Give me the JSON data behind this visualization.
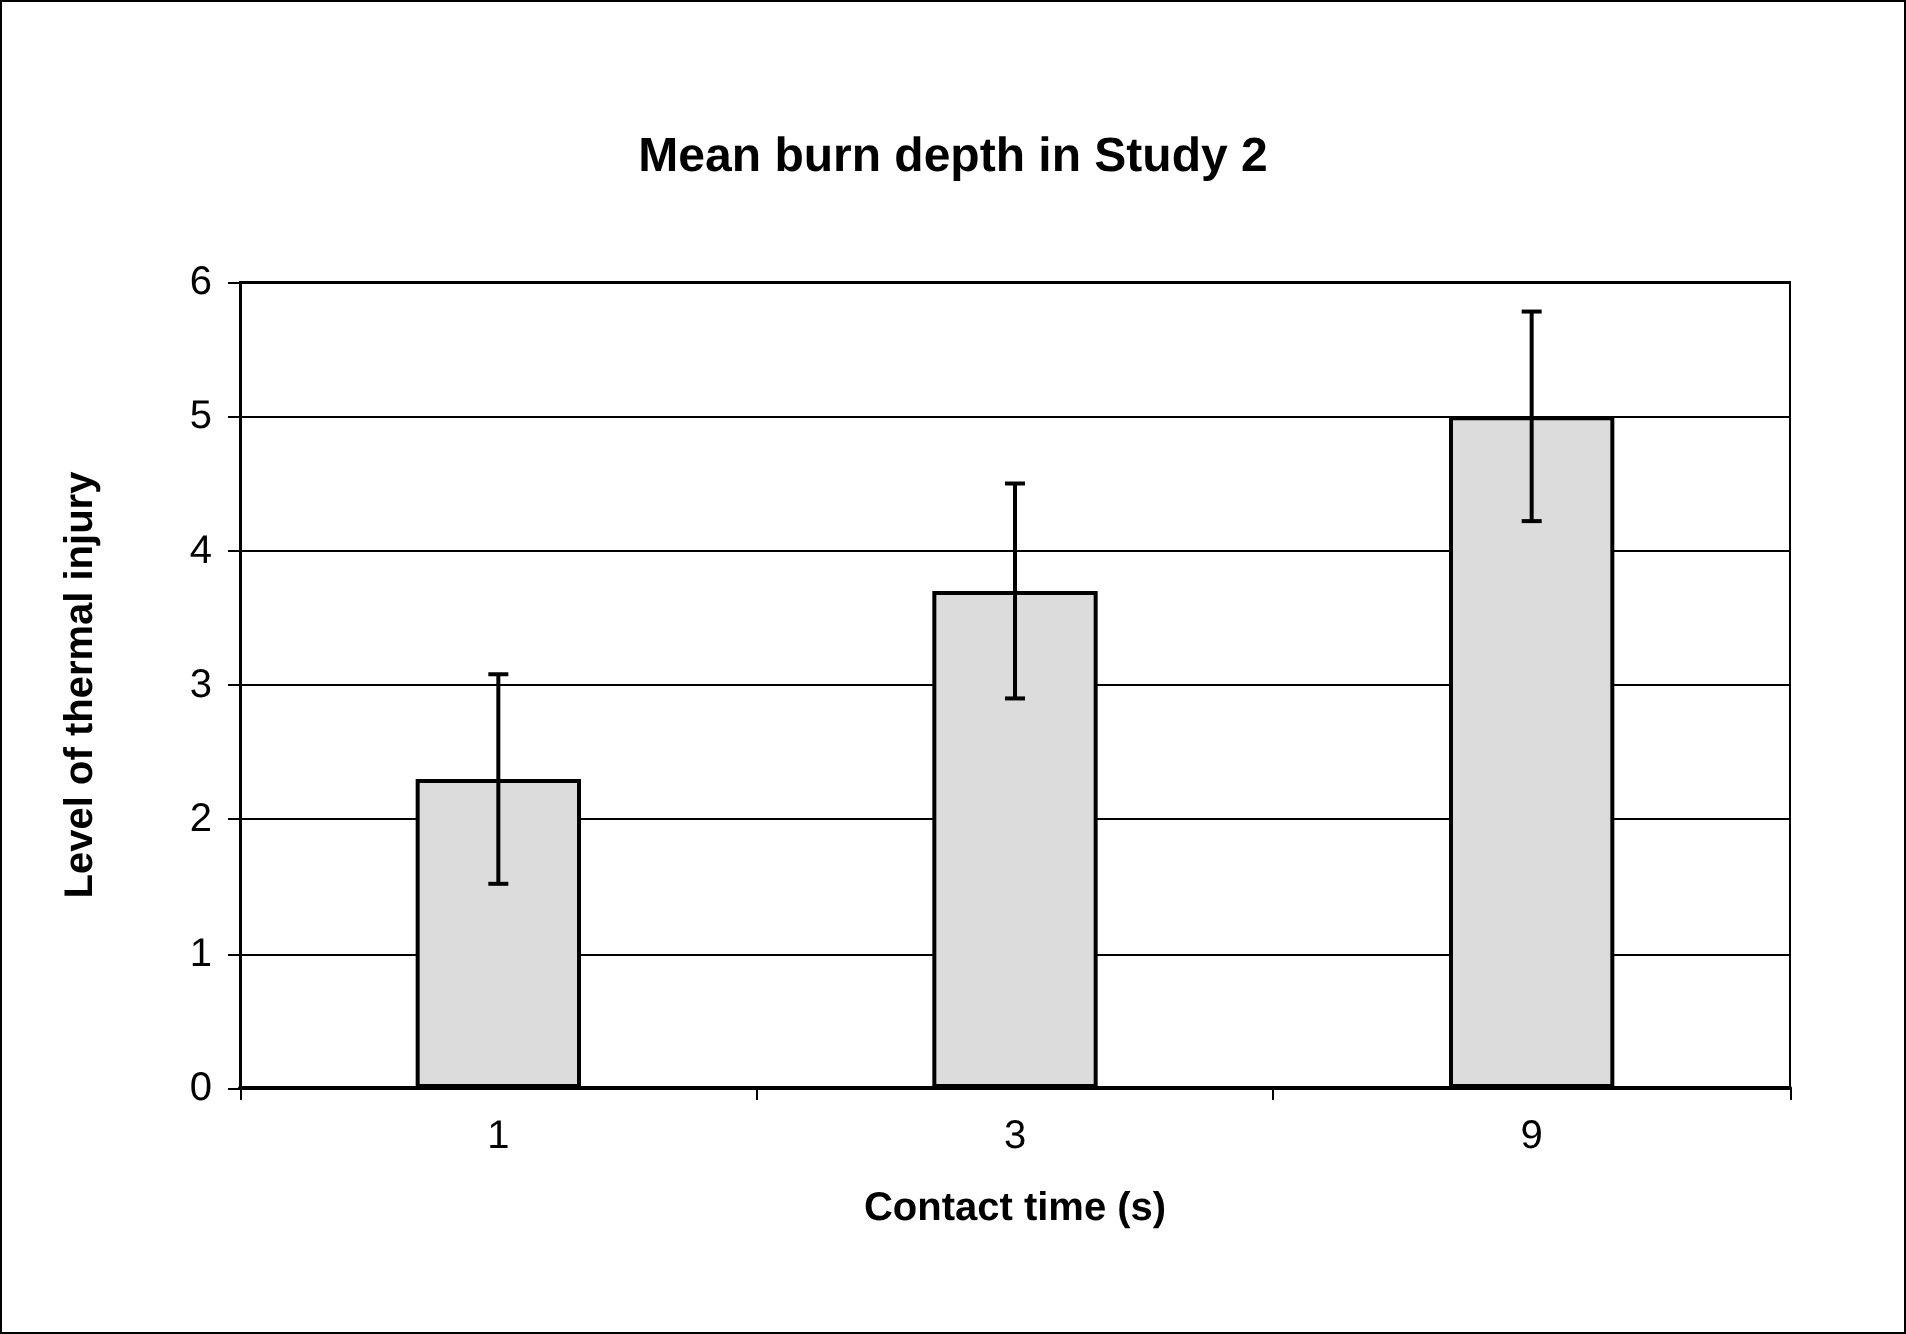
{
  "chart_data": {
    "type": "bar",
    "title": "Mean burn depth in Study 2",
    "xlabel": "Contact time (s)",
    "ylabel": "Level of thermal injury",
    "categories": [
      "1",
      "3",
      "9"
    ],
    "values": [
      2.3,
      3.7,
      5.0
    ],
    "errors": [
      0.78,
      0.8,
      0.78
    ],
    "color": "#dcdcdc",
    "ylim": [
      0,
      6
    ],
    "yticks": [
      0,
      1,
      2,
      3,
      4,
      5,
      6
    ],
    "grid": "y"
  }
}
